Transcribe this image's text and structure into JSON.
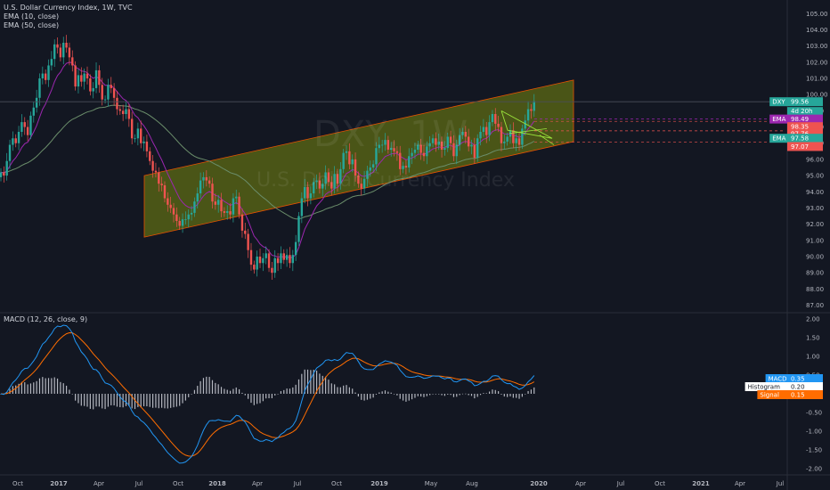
{
  "legend": {
    "title": "U.S. Dollar Currency Index, 1W, TVC",
    "ema1": "EMA (10, close)",
    "ema2": "EMA (50, close)",
    "macd": "MACD (12, 26, close, 9)"
  },
  "watermark": {
    "symbol": "DXY, 1W",
    "name": "U.S. Dollar Currency Index"
  },
  "colors": {
    "background": "#131722",
    "up": "#26a69a",
    "down": "#ef5350",
    "channel_fill": "#5d6b14",
    "channel_line": "#e65100",
    "ema10": "#9c27b0",
    "ema50": "#6b8e6b",
    "macd_line": "#2196f3",
    "signal_line": "#ff6d00",
    "triangle": "#9be33b"
  },
  "price_axis": {
    "ticks": [
      "105.00",
      "104.00",
      "103.00",
      "102.00",
      "101.00",
      "100.00",
      "99.00",
      "98.00",
      "97.00",
      "96.00",
      "95.00",
      "94.00",
      "93.00",
      "92.00",
      "91.00",
      "90.00",
      "89.00",
      "88.00",
      "87.00"
    ]
  },
  "macd_axis": {
    "ticks": [
      "2.00",
      "1.50",
      "1.00",
      "0.50",
      "0.00",
      "-0.50",
      "-1.00",
      "-1.50",
      "-2.00"
    ]
  },
  "time_axis": {
    "labels": [
      "Oct",
      "2017",
      "Apr",
      "Jul",
      "Oct",
      "2018",
      "Apr",
      "Jul",
      "Oct",
      "2019",
      "May",
      "Aug",
      "2020",
      "Apr",
      "Jul",
      "Oct",
      "2021",
      "Apr",
      "Jul"
    ]
  },
  "price_tags": [
    {
      "label": "DXY",
      "value": "99.56",
      "sub": "4d 20h",
      "color": "#26a69a"
    },
    {
      "label": "EMA",
      "value": "98.49",
      "color": "#9c27b0"
    },
    {
      "label": "",
      "value": "98.35",
      "color": "#ef5350"
    },
    {
      "label": "",
      "value": "97.76",
      "color": "#ef5350"
    },
    {
      "label": "EMA",
      "value": "97.58",
      "color": "#26a69a"
    },
    {
      "label": "",
      "value": "97.07",
      "color": "#ef5350"
    }
  ],
  "macd_tags": [
    {
      "label": "MACD",
      "value": "0.35",
      "color": "#2196f3"
    },
    {
      "label": "Histogram",
      "value": "0.20",
      "color": "#ffffff"
    },
    {
      "label": "Signal",
      "value": "0.15",
      "color": "#ff6d00"
    }
  ],
  "chart_data": [
    {
      "type": "candlestick",
      "title": "U.S. Dollar Currency Index, 1W, TVC",
      "ylim": [
        86.7,
        105.4
      ],
      "weekly_close": [
        95.2,
        95.0,
        95.9,
        96.9,
        97.3,
        97.0,
        97.7,
        98.3,
        98.0,
        97.5,
        98.7,
        99.2,
        99.8,
        101.0,
        101.3,
        100.9,
        101.8,
        102.2,
        103.1,
        102.9,
        102.3,
        103.2,
        102.9,
        102.3,
        101.8,
        100.5,
        101.2,
        100.8,
        101.3,
        101.0,
        100.2,
        100.4,
        101.5,
        100.6,
        99.7,
        99.7,
        100.6,
        100.4,
        99.8,
        99.1,
        99.0,
        98.8,
        99.1,
        98.5,
        97.3,
        97.3,
        97.9,
        97.0,
        97.1,
        96.5,
        95.9,
        95.3,
        95.2,
        94.5,
        94.4,
        93.6,
        93.2,
        93.0,
        92.6,
        92.2,
        91.9,
        92.3,
        92.3,
        92.6,
        92.7,
        93.4,
        93.9,
        94.7,
        94.9,
        94.7,
        94.5,
        93.4,
        93.2,
        93.5,
        92.8,
        92.7,
        92.8,
        92.6,
        93.6,
        93.7,
        92.6,
        91.6,
        91.4,
        90.4,
        89.5,
        89.2,
        90.0,
        89.6,
        89.9,
        90.2,
        89.3,
        89.0,
        89.9,
        89.6,
        90.2,
        89.8,
        90.1,
        89.6,
        90.1,
        90.9,
        92.5,
        93.6,
        94.3,
        93.6,
        93.9,
        94.6,
        94.7,
        94.2,
        94.5,
        95.2,
        94.6,
        94.2,
        95.1,
        94.5,
        95.4,
        96.4,
        96.5,
        95.7,
        96.0,
        95.0,
        94.5,
        94.2,
        94.8,
        95.3,
        95.5,
        95.7,
        96.7,
        96.9,
        96.9,
        97.2,
        96.6,
        96.7,
        96.5,
        96.4,
        95.4,
        95.6,
        95.5,
        96.2,
        96.4,
        96.6,
        96.9,
        96.4,
        96.2,
        96.8,
        97.0,
        97.3,
        96.9,
        97.1,
        96.6,
        96.7,
        97.4,
        97.0,
        96.2,
        96.9,
        97.5,
        97.7,
        97.4,
        96.8,
        96.9,
        96.1,
        97.3,
        97.7,
        98.0,
        97.5,
        98.3,
        98.8,
        98.2,
        98.0,
        97.0,
        97.1,
        97.4,
        97.8,
        97.0,
        97.3,
        96.9,
        97.9,
        98.4,
        99.1,
        99.0,
        99.6
      ],
      "channel_upper": [
        [
          95.0,
          96.0
        ],
        [
          100.9,
          106.0
        ]
      ],
      "channel_lower": [
        [
          91.2,
          91.0
        ],
        [
          97.1,
          96.2
        ]
      ],
      "ema_last": {
        "ema10": 98.49,
        "ema50": 97.58
      }
    },
    {
      "type": "macd",
      "title": "MACD (12, 26, close, 9)",
      "ylim": [
        -2.1,
        2.1
      ],
      "series": [
        {
          "name": "MACD",
          "last": 0.35
        },
        {
          "name": "Histogram",
          "last": 0.2
        },
        {
          "name": "Signal",
          "last": 0.15
        }
      ]
    }
  ]
}
